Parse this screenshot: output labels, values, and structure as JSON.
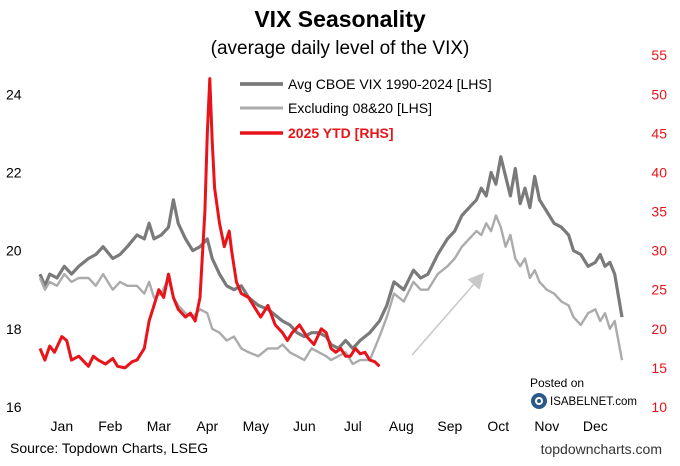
{
  "header": {
    "title": "VIX Seasonality",
    "subtitle": "(average daily level of the VIX)"
  },
  "footer": {
    "source": "Source: Topdown Charts, LSEG",
    "site": "topdowncharts.com",
    "posted_on": "Posted on",
    "isabelnet": "ISABELNET.com"
  },
  "colors": {
    "avg": "#7a7a7a",
    "excl": "#ababab",
    "ytd": "#e8141a",
    "arrow": "#c8c8c8"
  },
  "chart_data": {
    "type": "line",
    "title": "VIX Seasonality",
    "subtitle": "(average daily level of the VIX)",
    "x_categories": [
      "Jan",
      "Feb",
      "Mar",
      "Apr",
      "May",
      "Jun",
      "Jul",
      "Aug",
      "Sep",
      "Oct",
      "Nov",
      "Dec"
    ],
    "x_unit": "month index (0 = Jan 1, 12 = Dec 31)",
    "y_left": {
      "range": [
        16,
        24.8
      ],
      "ticks": [
        "16",
        "18",
        "20",
        "22",
        "24"
      ]
    },
    "y_right": {
      "range": [
        10,
        54
      ],
      "ticks": [
        "10",
        "15",
        "20",
        "25",
        "30",
        "35",
        "40",
        "45",
        "50",
        "55"
      ]
    },
    "legend_position": "top-center",
    "series": [
      {
        "name": "Avg CBOE VIX 1990-2024 [LHS]",
        "axis": "left",
        "points": [
          [
            0,
            19.4
          ],
          [
            0.1,
            19.1
          ],
          [
            0.2,
            19.4
          ],
          [
            0.35,
            19.3
          ],
          [
            0.5,
            19.6
          ],
          [
            0.65,
            19.4
          ],
          [
            0.8,
            19.6
          ],
          [
            1.0,
            19.8
          ],
          [
            1.15,
            19.9
          ],
          [
            1.3,
            20.1
          ],
          [
            1.5,
            19.8
          ],
          [
            1.65,
            19.9
          ],
          [
            1.8,
            20.1
          ],
          [
            2.0,
            20.4
          ],
          [
            2.15,
            20.3
          ],
          [
            2.25,
            20.7
          ],
          [
            2.35,
            20.3
          ],
          [
            2.5,
            20.4
          ],
          [
            2.65,
            20.6
          ],
          [
            2.75,
            21.3
          ],
          [
            2.85,
            20.7
          ],
          [
            3.0,
            20.3
          ],
          [
            3.15,
            20.0
          ],
          [
            3.3,
            20.1
          ],
          [
            3.45,
            20.3
          ],
          [
            3.55,
            19.8
          ],
          [
            3.7,
            19.4
          ],
          [
            3.85,
            19.1
          ],
          [
            4.0,
            19.0
          ],
          [
            4.15,
            19.1
          ],
          [
            4.3,
            18.8
          ],
          [
            4.5,
            18.6
          ],
          [
            4.7,
            18.5
          ],
          [
            4.9,
            18.3
          ],
          [
            5.0,
            18.2
          ],
          [
            5.15,
            18.1
          ],
          [
            5.3,
            17.9
          ],
          [
            5.45,
            17.8
          ],
          [
            5.6,
            17.9
          ],
          [
            5.75,
            17.9
          ],
          [
            5.9,
            17.8
          ],
          [
            6.0,
            17.6
          ],
          [
            6.15,
            17.5
          ],
          [
            6.3,
            17.7
          ],
          [
            6.45,
            17.5
          ],
          [
            6.6,
            17.7
          ],
          [
            6.8,
            17.9
          ],
          [
            7.0,
            18.2
          ],
          [
            7.15,
            18.6
          ],
          [
            7.3,
            19.2
          ],
          [
            7.5,
            19.0
          ],
          [
            7.7,
            19.5
          ],
          [
            7.85,
            19.3
          ],
          [
            8.0,
            19.4
          ],
          [
            8.2,
            19.9
          ],
          [
            8.4,
            20.3
          ],
          [
            8.55,
            20.5
          ],
          [
            8.7,
            20.9
          ],
          [
            8.85,
            21.1
          ],
          [
            9.0,
            21.3
          ],
          [
            9.1,
            21.6
          ],
          [
            9.2,
            21.4
          ],
          [
            9.3,
            22.0
          ],
          [
            9.4,
            21.7
          ],
          [
            9.5,
            22.4
          ],
          [
            9.6,
            21.9
          ],
          [
            9.7,
            21.4
          ],
          [
            9.8,
            22.1
          ],
          [
            9.9,
            21.2
          ],
          [
            10.0,
            21.6
          ],
          [
            10.1,
            21.1
          ],
          [
            10.2,
            21.9
          ],
          [
            10.3,
            21.3
          ],
          [
            10.45,
            21.0
          ],
          [
            10.6,
            20.7
          ],
          [
            10.75,
            20.6
          ],
          [
            10.9,
            20.4
          ],
          [
            11.0,
            20.0
          ],
          [
            11.15,
            19.9
          ],
          [
            11.3,
            19.6
          ],
          [
            11.45,
            19.7
          ],
          [
            11.55,
            19.9
          ],
          [
            11.65,
            19.6
          ],
          [
            11.75,
            19.7
          ],
          [
            11.85,
            19.4
          ],
          [
            12.0,
            18.3
          ]
        ]
      },
      {
        "name": "Excluding 08&20 [LHS]",
        "axis": "left",
        "points": [
          [
            0,
            19.3
          ],
          [
            0.1,
            19.0
          ],
          [
            0.2,
            19.2
          ],
          [
            0.35,
            19.1
          ],
          [
            0.5,
            19.4
          ],
          [
            0.65,
            19.2
          ],
          [
            0.8,
            19.3
          ],
          [
            1.0,
            19.3
          ],
          [
            1.15,
            19.1
          ],
          [
            1.3,
            19.4
          ],
          [
            1.5,
            19.0
          ],
          [
            1.65,
            19.2
          ],
          [
            1.8,
            19.1
          ],
          [
            2.0,
            19.1
          ],
          [
            2.15,
            18.9
          ],
          [
            2.25,
            19.2
          ],
          [
            2.35,
            18.8
          ],
          [
            2.5,
            18.9
          ],
          [
            2.65,
            19.3
          ],
          [
            2.75,
            18.8
          ],
          [
            2.85,
            18.6
          ],
          [
            3.0,
            18.4
          ],
          [
            3.15,
            18.3
          ],
          [
            3.3,
            18.5
          ],
          [
            3.45,
            18.4
          ],
          [
            3.55,
            18.0
          ],
          [
            3.7,
            17.9
          ],
          [
            3.85,
            17.7
          ],
          [
            4.0,
            17.8
          ],
          [
            4.15,
            17.5
          ],
          [
            4.3,
            17.4
          ],
          [
            4.5,
            17.3
          ],
          [
            4.7,
            17.5
          ],
          [
            4.9,
            17.5
          ],
          [
            5.0,
            17.6
          ],
          [
            5.15,
            17.4
          ],
          [
            5.3,
            17.3
          ],
          [
            5.45,
            17.2
          ],
          [
            5.6,
            17.5
          ],
          [
            5.75,
            17.4
          ],
          [
            5.9,
            17.3
          ],
          [
            6.0,
            17.2
          ],
          [
            6.15,
            17.3
          ],
          [
            6.3,
            17.4
          ],
          [
            6.45,
            17.1
          ],
          [
            6.6,
            17.2
          ],
          [
            6.8,
            17.2
          ],
          [
            7.0,
            17.8
          ],
          [
            7.15,
            18.3
          ],
          [
            7.3,
            18.9
          ],
          [
            7.5,
            18.7
          ],
          [
            7.7,
            19.2
          ],
          [
            7.85,
            19.0
          ],
          [
            8.0,
            19.0
          ],
          [
            8.2,
            19.4
          ],
          [
            8.4,
            19.6
          ],
          [
            8.55,
            19.8
          ],
          [
            8.7,
            20.1
          ],
          [
            8.85,
            20.3
          ],
          [
            9.0,
            20.5
          ],
          [
            9.1,
            20.4
          ],
          [
            9.2,
            20.7
          ],
          [
            9.3,
            20.5
          ],
          [
            9.4,
            20.9
          ],
          [
            9.5,
            20.6
          ],
          [
            9.6,
            20.1
          ],
          [
            9.7,
            20.4
          ],
          [
            9.8,
            19.8
          ],
          [
            9.9,
            19.6
          ],
          [
            10.0,
            19.8
          ],
          [
            10.1,
            19.3
          ],
          [
            10.2,
            19.5
          ],
          [
            10.3,
            19.2
          ],
          [
            10.45,
            19.0
          ],
          [
            10.6,
            18.9
          ],
          [
            10.75,
            18.7
          ],
          [
            10.9,
            18.6
          ],
          [
            11.0,
            18.3
          ],
          [
            11.15,
            18.1
          ],
          [
            11.3,
            18.4
          ],
          [
            11.45,
            18.5
          ],
          [
            11.55,
            18.2
          ],
          [
            11.65,
            18.4
          ],
          [
            11.75,
            18.0
          ],
          [
            11.85,
            18.2
          ],
          [
            12.0,
            17.2
          ]
        ]
      },
      {
        "name": "2025 YTD [RHS]",
        "axis": "right",
        "points": [
          [
            0,
            17.5
          ],
          [
            0.1,
            16.0
          ],
          [
            0.2,
            17.8
          ],
          [
            0.3,
            17.0
          ],
          [
            0.45,
            19.0
          ],
          [
            0.55,
            18.5
          ],
          [
            0.65,
            16.0
          ],
          [
            0.8,
            16.5
          ],
          [
            1.0,
            15.2
          ],
          [
            1.1,
            16.5
          ],
          [
            1.2,
            16.0
          ],
          [
            1.35,
            15.5
          ],
          [
            1.5,
            16.2
          ],
          [
            1.6,
            15.2
          ],
          [
            1.75,
            15.0
          ],
          [
            1.9,
            15.8
          ],
          [
            2.0,
            16.0
          ],
          [
            2.15,
            17.5
          ],
          [
            2.25,
            21.0
          ],
          [
            2.35,
            23.0
          ],
          [
            2.45,
            25.0
          ],
          [
            2.55,
            24.0
          ],
          [
            2.65,
            27.0
          ],
          [
            2.75,
            24.0
          ],
          [
            2.85,
            22.5
          ],
          [
            3.0,
            21.5
          ],
          [
            3.1,
            22.0
          ],
          [
            3.2,
            21.0
          ],
          [
            3.3,
            24.0
          ],
          [
            3.4,
            35.0
          ],
          [
            3.45,
            45.0
          ],
          [
            3.5,
            52.0
          ],
          [
            3.55,
            44.0
          ],
          [
            3.6,
            38.0
          ],
          [
            3.7,
            33.5
          ],
          [
            3.8,
            30.5
          ],
          [
            3.9,
            32.5
          ],
          [
            3.95,
            30.0
          ],
          [
            4.05,
            26.0
          ],
          [
            4.15,
            24.5
          ],
          [
            4.3,
            24.0
          ],
          [
            4.45,
            22.5
          ],
          [
            4.55,
            21.5
          ],
          [
            4.7,
            23.0
          ],
          [
            4.85,
            20.5
          ],
          [
            5.0,
            19.5
          ],
          [
            5.1,
            18.5
          ],
          [
            5.2,
            19.5
          ],
          [
            5.35,
            20.5
          ],
          [
            5.5,
            19.0
          ],
          [
            5.65,
            18.0
          ],
          [
            5.8,
            20.0
          ],
          [
            5.9,
            19.5
          ],
          [
            6.0,
            17.5
          ],
          [
            6.1,
            17.0
          ],
          [
            6.2,
            17.5
          ],
          [
            6.3,
            16.5
          ],
          [
            6.4,
            16.5
          ],
          [
            6.5,
            17.5
          ],
          [
            6.6,
            16.8
          ],
          [
            6.7,
            17.0
          ],
          [
            6.8,
            16.0
          ],
          [
            6.9,
            15.8
          ],
          [
            7.0,
            15.2
          ]
        ]
      }
    ],
    "annotation": "grey arrow pointing up-right toward autumn peak"
  }
}
